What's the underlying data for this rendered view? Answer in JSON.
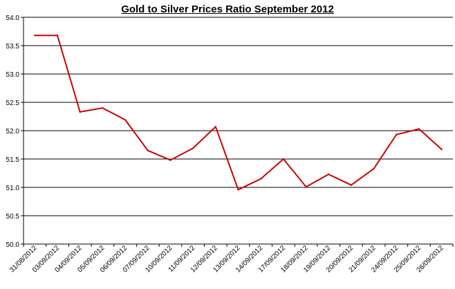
{
  "chart_data": {
    "type": "line",
    "title": "Gold to Silver Prices Ratio September 2012",
    "xlabel": "",
    "ylabel": "",
    "ylim": [
      50.0,
      54.0
    ],
    "yticks": [
      "50.0",
      "50.5",
      "51.0",
      "51.5",
      "52.0",
      "52.5",
      "53.0",
      "53.5",
      "54.0"
    ],
    "grid": true,
    "legend": "none",
    "categories": [
      "31/08/2012",
      "03/09/2012",
      "04/09/2012",
      "05/09/2012",
      "06/09/2012",
      "07/09/2012",
      "10/09/2012",
      "11/09/2012",
      "12/09/2012",
      "13/09/2012",
      "14/09/2012",
      "17/09/2012",
      "18/09/2012",
      "19/09/2012",
      "20/09/2012",
      "21/09/2012",
      "24/09/2012",
      "25/09/2012",
      "26/09/2012"
    ],
    "series": [
      {
        "values": [
          53.68,
          53.68,
          52.33,
          52.4,
          52.19,
          51.65,
          51.48,
          51.69,
          52.07,
          50.96,
          51.15,
          51.5,
          51.01,
          51.23,
          51.04,
          51.33,
          51.93,
          52.03,
          51.67
        ],
        "color": "#cc0000"
      }
    ]
  }
}
